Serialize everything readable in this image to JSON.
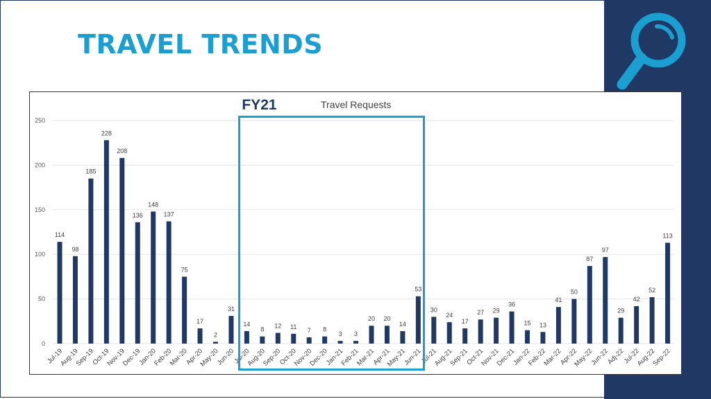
{
  "slide": {
    "title": "TRAVEL TRENDS",
    "accent_color": "#1a9fd0",
    "panel_color": "#1f3864",
    "icon": "magnifier-icon"
  },
  "highlight": {
    "label": "FY21",
    "start_category": "Jul-20",
    "end_category": "Jun-21"
  },
  "chart_data": {
    "type": "bar",
    "title": "Travel Requests",
    "xlabel": "",
    "ylabel": "",
    "ylim": [
      0,
      250
    ],
    "yticks": [
      0,
      50,
      100,
      150,
      200,
      250
    ],
    "grid": true,
    "bar_color": "#1f3864",
    "categories": [
      "Jul-19",
      "Aug-19",
      "Sep-19",
      "Oct-19",
      "Nov-19",
      "Dec-19",
      "Jan-20",
      "Feb-20",
      "Mar-20",
      "Apr-20",
      "May-20",
      "Jun-20",
      "Jul-20",
      "Aug-20",
      "Sep-20",
      "Oct-20",
      "Nov-20",
      "Dec-20",
      "Jan-21",
      "Feb-21",
      "Mar-21",
      "Apr-21",
      "May-21",
      "Jun-21",
      "Jul-21",
      "Aug-21",
      "Sep-21",
      "Oct-21",
      "Nov-21",
      "Dec-21",
      "Jan-22",
      "Feb-22",
      "Mar-22",
      "Apr-22",
      "May-22",
      "Jun-22",
      "Adj-22",
      "Jul-22",
      "Aug-22",
      "Sep-22"
    ],
    "values": [
      114,
      98,
      185,
      228,
      208,
      136,
      148,
      137,
      75,
      17,
      2,
      31,
      14,
      8,
      12,
      11,
      7,
      8,
      3,
      3,
      20,
      20,
      14,
      53,
      30,
      24,
      17,
      27,
      29,
      36,
      15,
      13,
      41,
      50,
      87,
      97,
      29,
      42,
      52,
      113
    ]
  }
}
